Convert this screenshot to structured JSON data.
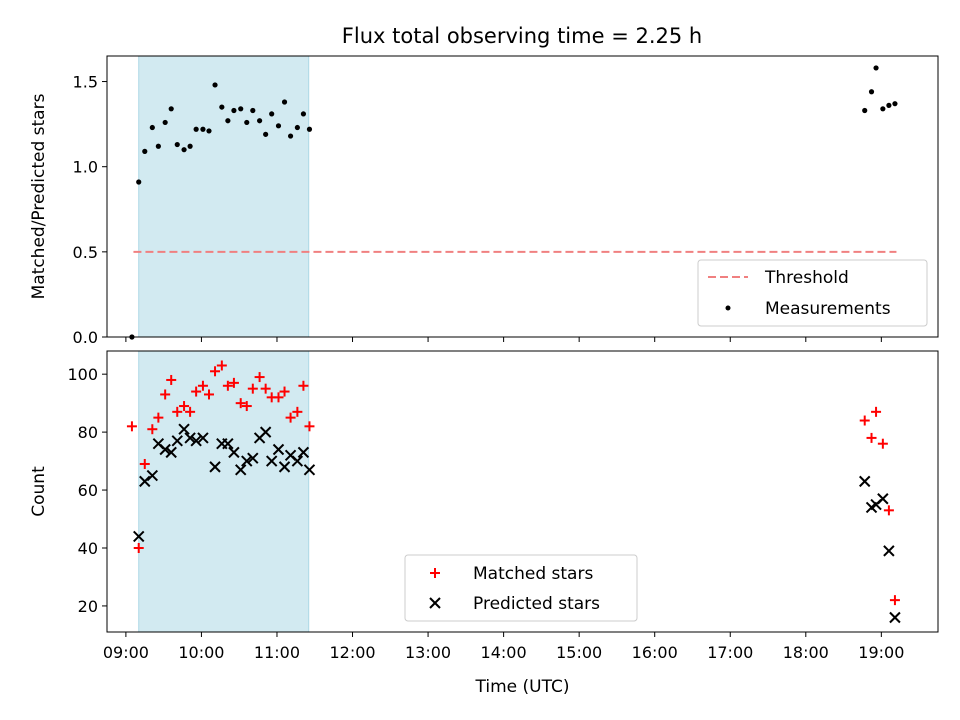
{
  "chart_data": [
    {
      "type": "scatter",
      "title": "Flux total observing time = 2.25 h",
      "ylabel": "Matched/Predicted stars",
      "xlabel": "",
      "xlim_hours": [
        8.75,
        19.75
      ],
      "ylim": [
        0,
        1.65
      ],
      "yticks": [
        0.0,
        0.5,
        1.0,
        1.5
      ],
      "ytick_labels": [
        "0.0",
        "0.5",
        "1.0",
        "1.5"
      ],
      "shaded_span_hours": [
        9.17,
        11.42
      ],
      "shaded_color": "#add8e6",
      "threshold": {
        "name": "Threshold",
        "y": 0.5,
        "x_from_hours": 9.1,
        "x_to_hours": 19.2,
        "color": "#f08080"
      },
      "legend_position": "lower right",
      "series": [
        {
          "name": "Measurements",
          "marker": "dot",
          "color": "#000000",
          "points": [
            [
              9.08,
              0.0
            ],
            [
              9.17,
              0.91
            ],
            [
              9.25,
              1.09
            ],
            [
              9.35,
              1.23
            ],
            [
              9.43,
              1.12
            ],
            [
              9.52,
              1.26
            ],
            [
              9.6,
              1.34
            ],
            [
              9.68,
              1.13
            ],
            [
              9.77,
              1.1
            ],
            [
              9.85,
              1.12
            ],
            [
              9.93,
              1.22
            ],
            [
              10.02,
              1.22
            ],
            [
              10.1,
              1.21
            ],
            [
              10.18,
              1.48
            ],
            [
              10.27,
              1.35
            ],
            [
              10.35,
              1.27
            ],
            [
              10.43,
              1.33
            ],
            [
              10.52,
              1.34
            ],
            [
              10.6,
              1.26
            ],
            [
              10.68,
              1.33
            ],
            [
              10.77,
              1.27
            ],
            [
              10.85,
              1.19
            ],
            [
              10.93,
              1.31
            ],
            [
              11.02,
              1.24
            ],
            [
              11.1,
              1.38
            ],
            [
              11.18,
              1.18
            ],
            [
              11.27,
              1.23
            ],
            [
              11.35,
              1.31
            ],
            [
              11.43,
              1.22
            ],
            [
              18.78,
              1.33
            ],
            [
              18.87,
              1.44
            ],
            [
              18.93,
              1.58
            ],
            [
              19.02,
              1.34
            ],
            [
              19.1,
              1.36
            ],
            [
              19.18,
              1.37
            ]
          ]
        }
      ]
    },
    {
      "type": "scatter",
      "title": "",
      "ylabel": "Count",
      "xlabel": "Time (UTC)",
      "xlim_hours": [
        8.75,
        19.75
      ],
      "ylim": [
        11,
        108
      ],
      "yticks": [
        20,
        40,
        60,
        80,
        100
      ],
      "ytick_labels": [
        "20",
        "40",
        "60",
        "80",
        "100"
      ],
      "xticks_hours": [
        9,
        10,
        11,
        12,
        13,
        14,
        15,
        16,
        17,
        18,
        19
      ],
      "xtick_labels": [
        "09:00",
        "10:00",
        "11:00",
        "12:00",
        "13:00",
        "14:00",
        "15:00",
        "16:00",
        "17:00",
        "18:00",
        "19:00"
      ],
      "shaded_span_hours": [
        9.17,
        11.42
      ],
      "shaded_color": "#add8e6",
      "legend_position": "lower center",
      "series": [
        {
          "name": "Matched stars",
          "marker": "plus",
          "color": "#ff0000",
          "points": [
            [
              9.08,
              82
            ],
            [
              9.17,
              40
            ],
            [
              9.25,
              69
            ],
            [
              9.35,
              81
            ],
            [
              9.43,
              85
            ],
            [
              9.52,
              93
            ],
            [
              9.6,
              98
            ],
            [
              9.68,
              87
            ],
            [
              9.77,
              89
            ],
            [
              9.85,
              87
            ],
            [
              9.93,
              94
            ],
            [
              10.02,
              96
            ],
            [
              10.1,
              93
            ],
            [
              10.18,
              101
            ],
            [
              10.27,
              103
            ],
            [
              10.35,
              96
            ],
            [
              10.43,
              97
            ],
            [
              10.52,
              90
            ],
            [
              10.6,
              89
            ],
            [
              10.68,
              95
            ],
            [
              10.77,
              99
            ],
            [
              10.85,
              95
            ],
            [
              10.93,
              92
            ],
            [
              11.02,
              92
            ],
            [
              11.1,
              94
            ],
            [
              11.18,
              85
            ],
            [
              11.27,
              87
            ],
            [
              11.35,
              96
            ],
            [
              11.43,
              82
            ],
            [
              18.78,
              84
            ],
            [
              18.87,
              78
            ],
            [
              18.93,
              87
            ],
            [
              19.02,
              76
            ],
            [
              19.1,
              53
            ],
            [
              19.18,
              22
            ]
          ]
        },
        {
          "name": "Predicted stars",
          "marker": "x",
          "color": "#000000",
          "points": [
            [
              9.17,
              44
            ],
            [
              9.25,
              63
            ],
            [
              9.35,
              65
            ],
            [
              9.43,
              76
            ],
            [
              9.52,
              74
            ],
            [
              9.6,
              73
            ],
            [
              9.68,
              77
            ],
            [
              9.77,
              81
            ],
            [
              9.85,
              78
            ],
            [
              9.93,
              77
            ],
            [
              10.02,
              78
            ],
            [
              10.18,
              68
            ],
            [
              10.27,
              76
            ],
            [
              10.35,
              76
            ],
            [
              10.43,
              73
            ],
            [
              10.52,
              67
            ],
            [
              10.6,
              70
            ],
            [
              10.68,
              71
            ],
            [
              10.77,
              78
            ],
            [
              10.85,
              80
            ],
            [
              10.93,
              70
            ],
            [
              11.02,
              74
            ],
            [
              11.1,
              68
            ],
            [
              11.18,
              72
            ],
            [
              11.27,
              70
            ],
            [
              11.35,
              73
            ],
            [
              11.43,
              67
            ],
            [
              18.78,
              63
            ],
            [
              18.87,
              54
            ],
            [
              18.93,
              55
            ],
            [
              19.02,
              57
            ],
            [
              19.1,
              39
            ],
            [
              19.18,
              16
            ]
          ]
        }
      ]
    }
  ]
}
